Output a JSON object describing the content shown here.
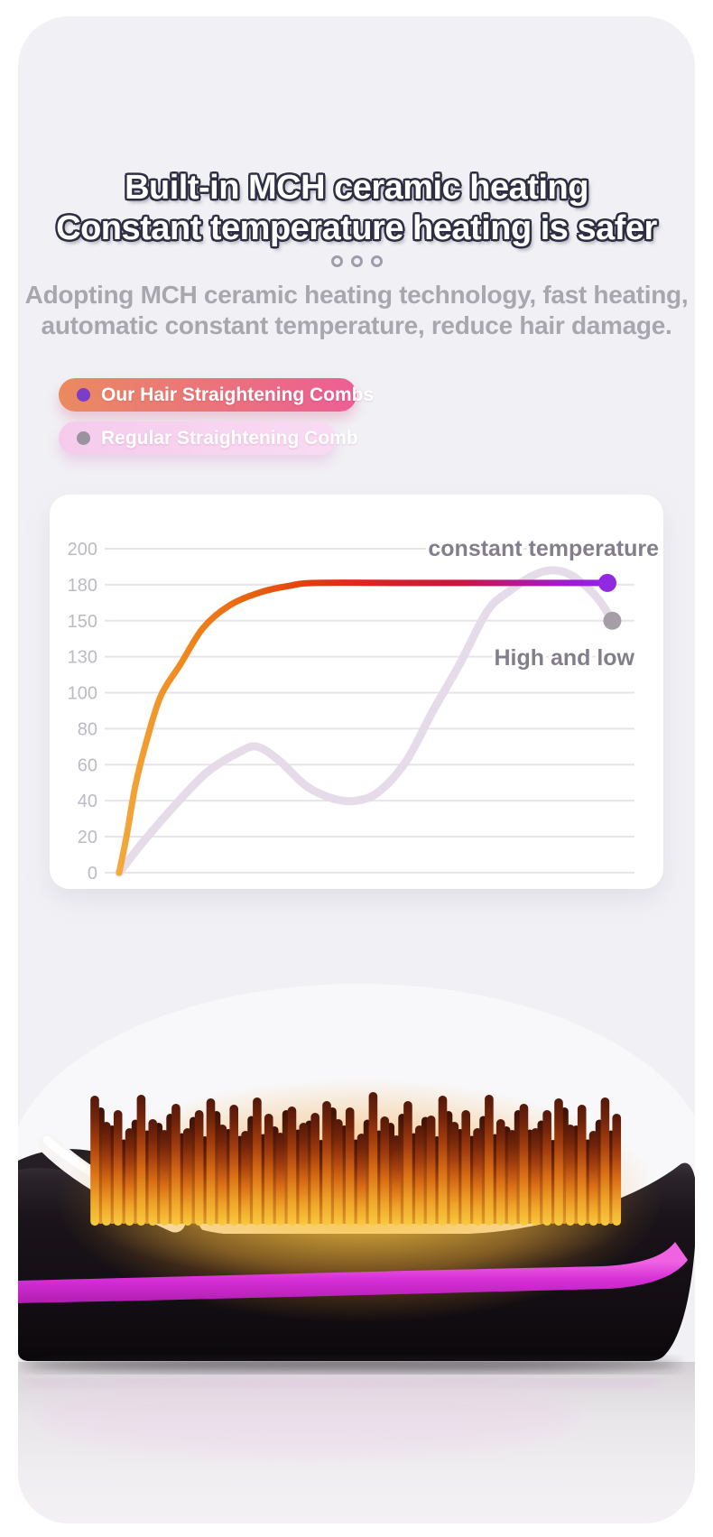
{
  "page": {
    "background": "#ffffff",
    "panel_background": "#f1f1f5"
  },
  "header": {
    "title_line1": "Built-in MCH ceramic heating",
    "title_line2": "Constant temperature heating is safer",
    "title_fill": "#ffffff",
    "title_outline": "#2e2e42",
    "subtitle_line1": "Adopting MCH ceramic heating technology, fast heating,",
    "subtitle_line2": "automatic constant temperature, reduce hair damage.",
    "subtitle_color": "#a8a7ae"
  },
  "legend": [
    {
      "label": "Our Hair Straightening Combs",
      "dot_color": "#7b3ec6",
      "background_from": "#ea8a60",
      "background_to": "#ec5e95"
    },
    {
      "label": "Regular Straightening Comb",
      "dot_color": "#99929f",
      "background_from": "#f5cbec",
      "background_to": "#f9dbf3"
    }
  ],
  "chart_data": {
    "type": "line",
    "title": "",
    "xlabel": "",
    "ylabel": "",
    "ylim": [
      0,
      200
    ],
    "y_ticks": [
      200,
      180,
      150,
      130,
      100,
      80,
      60,
      40,
      20,
      0
    ],
    "grid": true,
    "legend_position": "pills above chart",
    "tick_label_color": "#bcbac2",
    "grid_color": "#e6e4ea",
    "annotation_color": "#827e8c",
    "series": [
      {
        "name": "Our Hair Straightening Combs",
        "annotation": "constant temperature",
        "line_width": 7,
        "points": [
          [
            0,
            0
          ],
          [
            1.5,
            20
          ],
          [
            3.3,
            48
          ],
          [
            5.5,
            72
          ],
          [
            8.5,
            98
          ],
          [
            12.6,
            124
          ],
          [
            17.2,
            146
          ],
          [
            22.7,
            163
          ],
          [
            29.2,
            174
          ],
          [
            34.8,
            179
          ],
          [
            40.3,
            181
          ],
          [
            60,
            181
          ],
          [
            80,
            181
          ],
          [
            100,
            181
          ]
        ],
        "gradient_stops": [
          [
            0,
            "#f3a93c"
          ],
          [
            0.13,
            "#f0891e"
          ],
          [
            0.27,
            "#e9610f"
          ],
          [
            0.4,
            "#e13a11"
          ],
          [
            0.55,
            "#d81e26"
          ],
          [
            0.7,
            "#cc1440"
          ],
          [
            0.82,
            "#b31896"
          ],
          [
            0.93,
            "#9c1cd6"
          ],
          [
            1,
            "#8f25e8"
          ]
        ],
        "end_dot_color": "#9129e0"
      },
      {
        "name": "Regular Straightening Comb",
        "annotation": "High and low",
        "line_width": 9,
        "color": "#e6dbe8",
        "points": [
          [
            0,
            0
          ],
          [
            5.2,
            18
          ],
          [
            11.6,
            38
          ],
          [
            18.1,
            56
          ],
          [
            24.6,
            67
          ],
          [
            28.3,
            70
          ],
          [
            32.9,
            62
          ],
          [
            38.4,
            48
          ],
          [
            44,
            41
          ],
          [
            48.6,
            40
          ],
          [
            53.2,
            45
          ],
          [
            58.8,
            62
          ],
          [
            64.3,
            90
          ],
          [
            69.9,
            125
          ],
          [
            75.4,
            158
          ],
          [
            80,
            175
          ],
          [
            84.7,
            185
          ],
          [
            88.4,
            188
          ],
          [
            92.1,
            186
          ],
          [
            95.8,
            178
          ],
          [
            98.5,
            166
          ],
          [
            101,
            150
          ]
        ],
        "end_dot_color": "#a59ea7"
      }
    ]
  },
  "product": {
    "stripe_color": "#d72fd7",
    "body_color": "#171217",
    "glow_color": "#f39a25",
    "bristle_tip_color": "#53180a",
    "bristle_base_color": "#f8cb40"
  }
}
